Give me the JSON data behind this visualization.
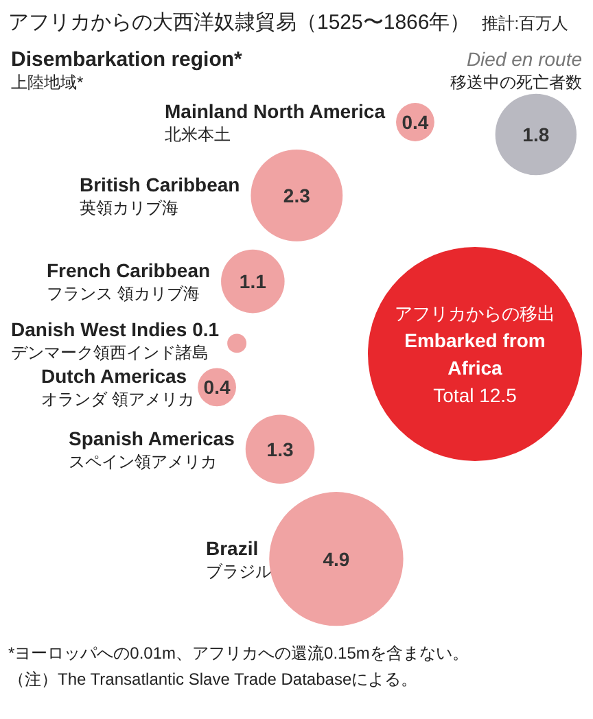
{
  "chart_data": {
    "type": "other",
    "title": "アフリカからの大西洋奴隷貿易（1525〜1866年）",
    "subtitle": "推計:百万人",
    "categories": [
      "Mainland North America",
      "British Caribbean",
      "French Caribbean",
      "Danish West Indies",
      "Dutch Americas",
      "Spanish Americas",
      "Brazil",
      "Died en route",
      "Embarked from Africa"
    ],
    "values": [
      0.4,
      2.3,
      1.1,
      0.1,
      0.4,
      1.3,
      4.9,
      1.8,
      12.5
    ],
    "value_labels": [
      "0.4",
      "2.3",
      "1.1",
      "0.1",
      "0.4",
      "1.3",
      "4.9",
      "1.8",
      "Total 12.5"
    ],
    "colors": [
      "#f0a3a3",
      "#f0a3a3",
      "#f0a3a3",
      "#f0a3a3",
      "#f0a3a3",
      "#f0a3a3",
      "#f0a3a3",
      "#b9b9c1",
      "#e8282d"
    ],
    "annotations": [
      "Disembarkation region*",
      "上陸地域*",
      {
        "text": "北米本土",
        "x": "Mainland North America"
      },
      {
        "text": "英領カリブ海",
        "x": "British Caribbean"
      },
      {
        "text": "フランス 領カリブ海",
        "x": "French Caribbean"
      },
      {
        "text": "デンマーク領西インド諸島",
        "x": "Danish West Indies"
      },
      {
        "text": "オランダ 領アメリカ",
        "x": "Dutch Americas"
      },
      {
        "text": "スペイン領アメリカ",
        "x": "Spanish Americas"
      },
      {
        "text": "ブラジル",
        "x": "Brazil"
      },
      {
        "text": "移送中の死亡者数",
        "x": "Died en route"
      },
      {
        "text": "アフリカからの移出",
        "x": "Embarked from Africa"
      },
      "*ヨーロッパへの0.01m、アフリカへの還流0.15mを含まない。",
      "（注）The Transatlantic Slave Trade Databaseによる。"
    ]
  }
}
